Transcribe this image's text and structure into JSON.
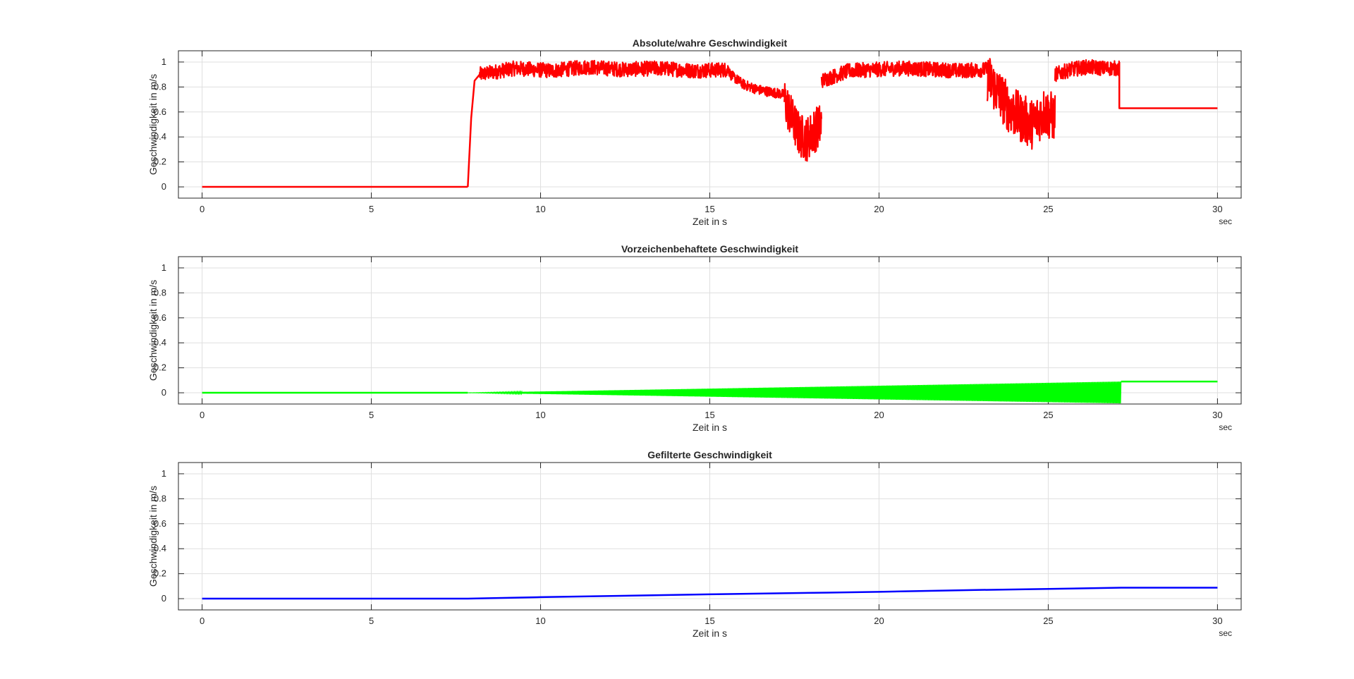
{
  "figure": {
    "background": "#ffffff",
    "grid_color": "#dfdfdf",
    "axis_color": "#262626"
  },
  "chart_data": [
    {
      "type": "line",
      "title": "Absolute/wahre Geschwindigkeit",
      "xlabel": "Zeit in s",
      "ylabel": "Geschwindigkeit in m/s",
      "x_unit": "sec",
      "xlim": [
        -0.7,
        30.7
      ],
      "ylim": [
        -0.09,
        1.09
      ],
      "grid": true,
      "xticks": [
        0,
        5,
        10,
        15,
        20,
        25,
        30
      ],
      "yticks": [
        0,
        0.2,
        0.4,
        0.6,
        0.8,
        1
      ],
      "series": [
        {
          "color": "#ff0000",
          "segments": [
            {
              "kind": "line",
              "x": [
                0,
                7.85
              ],
              "y": [
                0,
                0
              ]
            },
            {
              "kind": "line",
              "x": [
                7.85,
                7.95,
                8.05,
                8.2
              ],
              "y": [
                0,
                0.55,
                0.85,
                0.9
              ]
            },
            {
              "kind": "noise",
              "x0": 8.2,
              "x1": 15.6,
              "y": [
                0.9,
                0.95,
                0.93,
                0.96,
                0.94,
                0.95,
                0.93,
                0.94
              ],
              "amp": 0.06
            },
            {
              "kind": "noise",
              "x0": 15.6,
              "x1": 17.2,
              "y": [
                0.9,
                0.82,
                0.78,
                0.76,
                0.74
              ],
              "amp": 0.04
            },
            {
              "kind": "noise",
              "x0": 17.2,
              "x1": 18.3,
              "y": [
                0.7,
                0.55,
                0.42,
                0.38,
                0.45,
                0.5
              ],
              "amp": 0.18
            },
            {
              "kind": "noise",
              "x0": 18.3,
              "x1": 23.2,
              "y": [
                0.85,
                0.93,
                0.94,
                0.95,
                0.94,
                0.93,
                0.94
              ],
              "amp": 0.06
            },
            {
              "kind": "noise",
              "x0": 23.2,
              "x1": 25.2,
              "y": [
                0.88,
                0.75,
                0.62,
                0.55,
                0.5,
                0.6,
                0.55
              ],
              "amp": 0.2
            },
            {
              "kind": "noise",
              "x0": 25.2,
              "x1": 27.1,
              "y": [
                0.9,
                0.94,
                0.96,
                0.95,
                0.95
              ],
              "amp": 0.06
            },
            {
              "kind": "line",
              "x": [
                27.1,
                27.1,
                30
              ],
              "y": [
                1.0,
                0.63,
                0.63
              ]
            }
          ]
        }
      ]
    },
    {
      "type": "line",
      "title": "Vorzeichenbehaftete Geschwindigkeit",
      "xlabel": "Zeit in s",
      "ylabel": "Geschwindigkeit in m/s",
      "x_unit": "sec",
      "xlim": [
        -0.7,
        30.7
      ],
      "ylim": [
        -0.09,
        1.09
      ],
      "grid": true,
      "xticks": [
        0,
        5,
        10,
        15,
        20,
        25,
        30
      ],
      "yticks": [
        0,
        0.2,
        0.4,
        0.6,
        0.8,
        1
      ],
      "series": [
        {
          "color": "#00ff00",
          "segments": [
            {
              "kind": "line",
              "x": [
                0,
                7.85
              ],
              "y": [
                0,
                0
              ]
            },
            {
              "kind": "band",
              "x0": 7.85,
              "x1": 27.15,
              "upper": [
                0,
                0.09
              ],
              "lower": [
                0,
                -0.085
              ]
            },
            {
              "kind": "line",
              "x": [
                27.15,
                30
              ],
              "y": [
                0.09,
                0.09
              ]
            }
          ]
        }
      ]
    },
    {
      "type": "line",
      "title": "Gefilterte Geschwindigkeit",
      "xlabel": "Zeit in s",
      "ylabel": "Geschwindigkeit in m/s",
      "x_unit": "sec",
      "xlim": [
        -0.7,
        30.7
      ],
      "ylim": [
        -0.09,
        1.09
      ],
      "grid": true,
      "xticks": [
        0,
        5,
        10,
        15,
        20,
        25,
        30
      ],
      "yticks": [
        0,
        0.2,
        0.4,
        0.6,
        0.8,
        1
      ],
      "series": [
        {
          "color": "#0000ff",
          "segments": [
            {
              "kind": "line",
              "x": [
                0,
                7.85,
                10,
                15,
                17.5,
                18.5,
                20,
                23,
                25,
                27.15,
                30
              ],
              "y": [
                0,
                0,
                0.012,
                0.035,
                0.045,
                0.048,
                0.055,
                0.07,
                0.078,
                0.088,
                0.088
              ]
            }
          ]
        }
      ]
    }
  ]
}
